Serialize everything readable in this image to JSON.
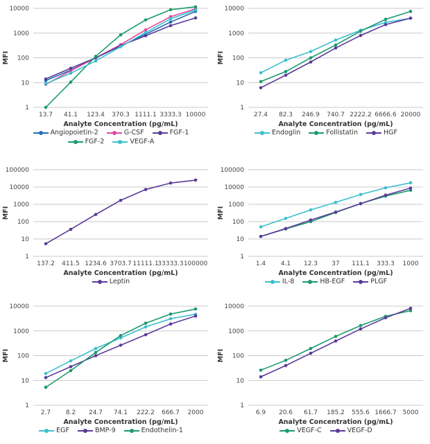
{
  "chart_data": [
    {
      "type": "line",
      "ylabel": "MFI",
      "xlabel": "Analyte Concentration (pg/mL)",
      "yscale": "log",
      "ylim": [
        1,
        10000
      ],
      "grid": true,
      "legend": "bottom",
      "categories": [
        "13.7",
        "41.1",
        "123.4",
        "370.3",
        "1111.1",
        "3333.3",
        "10000"
      ],
      "series": [
        {
          "name": "Angiopoietin-2",
          "color": "#1f6fb5",
          "values": [
            12,
            32,
            100,
            300,
            900,
            2800,
            7500
          ]
        },
        {
          "name": "G-CSF",
          "color": "#e0479e",
          "values": [
            8.5,
            30,
            100,
            340,
            1350,
            4600,
            9500
          ]
        },
        {
          "name": "FGF-1",
          "color": "#5b3a99",
          "values": [
            14,
            38,
            100,
            310,
            780,
            2000,
            4100
          ]
        },
        {
          "name": "FGF-2",
          "color": "#1a9a6e",
          "values": [
            1,
            10.5,
            115,
            850,
            3400,
            8800,
            11500
          ]
        },
        {
          "name": "VEGF-A",
          "color": "#3bbfcf",
          "values": [
            9,
            24,
            75,
            280,
            1050,
            3800,
            8500
          ]
        }
      ]
    },
    {
      "type": "line",
      "ylabel": "MFI",
      "xlabel": "Analyte Concentration (pg/mL)",
      "yscale": "log",
      "ylim": [
        1,
        10000
      ],
      "grid": true,
      "legend": "bottom",
      "categories": [
        "27.4",
        "82.3",
        "246.9",
        "740.7",
        "2222.2",
        "6666.6",
        "20000"
      ],
      "series": [
        {
          "name": "Endoglin",
          "color": "#3bbfcf",
          "values": [
            25,
            80,
            180,
            520,
            1300,
            2700,
            4000
          ]
        },
        {
          "name": "Follistatin",
          "color": "#1a9a6e",
          "values": [
            11,
            28,
            100,
            330,
            1200,
            3600,
            7500
          ]
        },
        {
          "name": "HGF",
          "color": "#5b3a99",
          "values": [
            6.2,
            20,
            68,
            250,
            800,
            2200,
            4000
          ]
        }
      ]
    },
    {
      "type": "line",
      "ylabel": "MFI",
      "xlabel": "Analyte Concentration (pg/mL)",
      "yscale": "log",
      "ylim": [
        1,
        100000
      ],
      "grid": true,
      "legend": "bottom",
      "categories": [
        "137.2",
        "411.5",
        "1234.6",
        "3703.7",
        "11111.1",
        "33333.3",
        "100000"
      ],
      "series": [
        {
          "name": "Leptin",
          "color": "#5b3a99",
          "values": [
            5.3,
            36,
            260,
            1700,
            7200,
            17000,
            25000
          ]
        }
      ]
    },
    {
      "type": "line",
      "ylabel": "MFI",
      "xlabel": "Analyte Concentration (pg/mL)",
      "yscale": "log",
      "ylim": [
        1,
        100000
      ],
      "grid": true,
      "legend": "bottom",
      "categories": [
        "1.4",
        "4.1",
        "12.3",
        "37",
        "111.1",
        "333.3",
        "1000"
      ],
      "series": [
        {
          "name": "IL-8",
          "color": "#3bbfcf",
          "values": [
            50,
            155,
            480,
            1300,
            3700,
            9000,
            17500
          ]
        },
        {
          "name": "HB-EGF",
          "color": "#1a9a6e",
          "values": [
            14,
            38,
            100,
            340,
            1100,
            3000,
            6500
          ]
        },
        {
          "name": "PLGF",
          "color": "#5b3a99",
          "values": [
            14,
            40,
            125,
            360,
            1100,
            3400,
            8700
          ]
        }
      ]
    },
    {
      "type": "line",
      "ylabel": "MFI",
      "xlabel": "Analyte Concentration (pg/mL)",
      "yscale": "log",
      "ylim": [
        1,
        10000
      ],
      "grid": true,
      "legend": "bottom",
      "categories": [
        "2.7",
        "8.2",
        "24.7",
        "74.1",
        "222.2",
        "666.7",
        "2000"
      ],
      "series": [
        {
          "name": "EGF",
          "color": "#3bbfcf",
          "values": [
            19,
            62,
            195,
            520,
            1450,
            3100,
            4700
          ]
        },
        {
          "name": "BMP-9",
          "color": "#5b3a99",
          "values": [
            13,
            36,
            100,
            265,
            700,
            1900,
            4000
          ]
        },
        {
          "name": "Endothelin-1",
          "color": "#1a9a6e",
          "values": [
            5.3,
            25,
            135,
            650,
            2050,
            4800,
            7700
          ]
        }
      ]
    },
    {
      "type": "line",
      "ylabel": "MFI",
      "xlabel": "Analyte Concentration (pg/mL)",
      "yscale": "log",
      "ylim": [
        1,
        10000
      ],
      "grid": true,
      "legend": "bottom",
      "categories": [
        "6.9",
        "20.6",
        "61.7",
        "185.2",
        "555.6",
        "1666.7",
        "5000"
      ],
      "series": [
        {
          "name": "VEGF-C",
          "color": "#1a9a6e",
          "values": [
            26,
            65,
            195,
            600,
            1650,
            3900,
            6600
          ]
        },
        {
          "name": "VEGF-D",
          "color": "#5b3a99",
          "values": [
            14,
            40,
            125,
            390,
            1200,
            3400,
            8200
          ]
        }
      ]
    }
  ]
}
